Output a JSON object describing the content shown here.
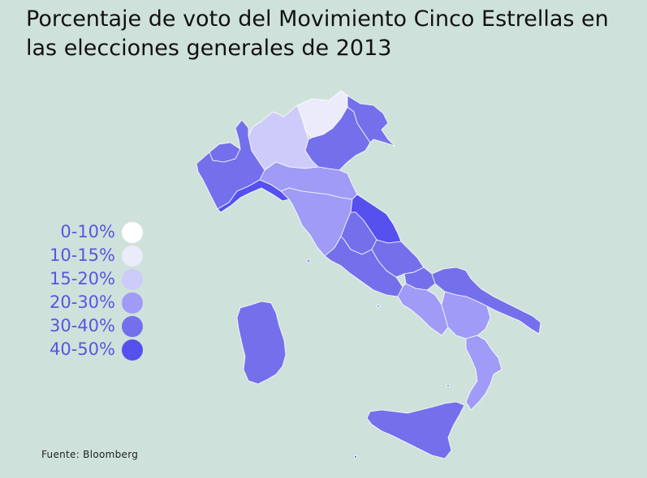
{
  "title": "Porcentaje de voto del Movimiento Cinco Estrellas en las elecciones generales de 2013",
  "source": "Fuente: Bloomberg",
  "legend": [
    {
      "label": "0-10%",
      "color": "#ffffff"
    },
    {
      "label": "10-15%",
      "color": "#ecebfb"
    },
    {
      "label": "15-20%",
      "color": "#cdcbfa"
    },
    {
      "label": "20-30%",
      "color": "#a09bf6"
    },
    {
      "label": "30-40%",
      "color": "#7470ec"
    },
    {
      "label": "40-50%",
      "color": "#5550ee"
    }
  ],
  "regions": {
    "trentino": "10-15%",
    "lombardia": "15-20%",
    "emilia-romagna": "20-30%",
    "toscana": "20-30%",
    "campania": "20-30%",
    "basilicata": "20-30%",
    "calabria": "20-30%",
    "piemonte": "30-40%",
    "valle-daosta": "30-40%",
    "veneto": "30-40%",
    "friuli": "30-40%",
    "umbria": "30-40%",
    "lazio": "30-40%",
    "abruzzo": "30-40%",
    "molise": "30-40%",
    "puglia": "30-40%",
    "sardegna": "30-40%",
    "sicilia": "30-40%",
    "liguria": "40-50%",
    "marche": "40-50%"
  }
}
